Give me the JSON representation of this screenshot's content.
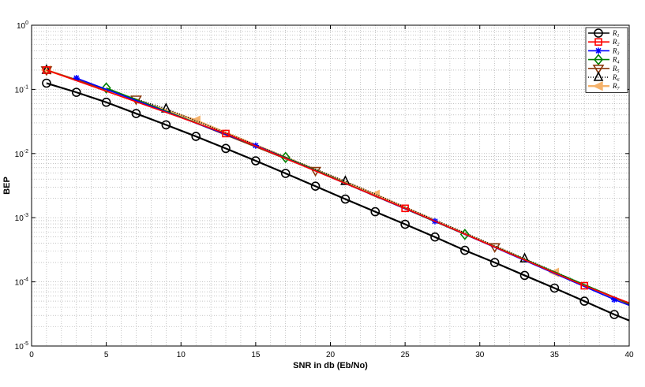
{
  "chart_data": {
    "type": "line",
    "xlabel": "SNR in db (Eb/No)",
    "ylabel": "BEP",
    "xlim": [
      0,
      40
    ],
    "ylim": [
      1e-05,
      1
    ],
    "yscale": "log",
    "grid": true,
    "legend_position": "top-right",
    "x_ticks": [
      "0",
      "5",
      "10",
      "15",
      "20",
      "25",
      "30",
      "35",
      "40"
    ],
    "y_ticks": [
      {
        "base": "10",
        "exp": "-5"
      },
      {
        "base": "10",
        "exp": "-4"
      },
      {
        "base": "10",
        "exp": "-3"
      },
      {
        "base": "10",
        "exp": "-2"
      },
      {
        "base": "10",
        "exp": "-1"
      },
      {
        "base": "10",
        "exp": "0"
      }
    ],
    "series": [
      {
        "name": "R1",
        "label_main": "R",
        "label_sub": "1",
        "color": "#000000",
        "marker": "circle",
        "x": [
          1,
          3,
          5,
          7,
          9,
          11,
          13,
          15,
          17,
          19,
          21,
          23,
          25,
          27,
          29,
          31,
          33,
          35,
          37,
          39
        ],
        "y": [
          0.125,
          0.09,
          0.063,
          0.042,
          0.028,
          0.0185,
          0.012,
          0.0077,
          0.0049,
          0.0031,
          0.00195,
          0.00124,
          0.00079,
          0.0005,
          0.00031,
          0.0002,
          0.000126,
          8e-05,
          5e-05,
          3.1e-05
        ],
        "endpoint": {
          "x": 40,
          "y": 2.5e-05
        }
      },
      {
        "name": "R2",
        "label_main": "R",
        "label_sub": "2",
        "color": "#ff0000",
        "marker": "square",
        "x": [
          1,
          13,
          25,
          37
        ],
        "y": [
          0.2,
          0.0205,
          0.0014,
          8.7e-05
        ],
        "endpoint": {
          "x": 40,
          "y": 4.7e-05
        }
      },
      {
        "name": "R3",
        "label_main": "R",
        "label_sub": "3",
        "color": "#0000ff",
        "marker": "star",
        "x": [
          3,
          15,
          27,
          39
        ],
        "y": [
          0.15,
          0.0133,
          0.00088,
          5.3e-05
        ],
        "endpoint": {
          "x": 40,
          "y": 4.3e-05
        }
      },
      {
        "name": "R4",
        "label_main": "R",
        "label_sub": "4",
        "color": "#008000",
        "marker": "diamond",
        "x": [
          5,
          17,
          29
        ],
        "y": [
          0.105,
          0.0087,
          0.00055
        ],
        "endpoint": {
          "x": 40,
          "y": 4.6e-05
        }
      },
      {
        "name": "R5",
        "label_main": "R",
        "label_sub": "5",
        "color": "#8b3a0f",
        "marker": "triangle-down",
        "x": [
          1,
          7,
          19,
          31
        ],
        "y": [
          0.2,
          0.07,
          0.0054,
          0.00035
        ],
        "endpoint": {
          "x": 40,
          "y": 4.5e-05
        }
      },
      {
        "name": "R6",
        "label_main": "R",
        "label_sub": "6",
        "color": "#000000",
        "marker": "triangle-up",
        "dotted": true,
        "x": [
          1,
          9,
          21,
          33
        ],
        "y": [
          0.2,
          0.05,
          0.0037,
          0.00023
        ],
        "endpoint": {
          "x": 40,
          "y": 4.5e-05
        }
      },
      {
        "name": "R7",
        "label_main": "R",
        "label_sub": "7",
        "color": "#f5b26b",
        "marker": "triangle-left",
        "x": [
          1,
          11,
          23,
          35
        ],
        "y": [
          0.2,
          0.033,
          0.0023,
          0.00014
        ],
        "endpoint": {
          "x": 40,
          "y": 4.4e-05
        }
      }
    ]
  }
}
